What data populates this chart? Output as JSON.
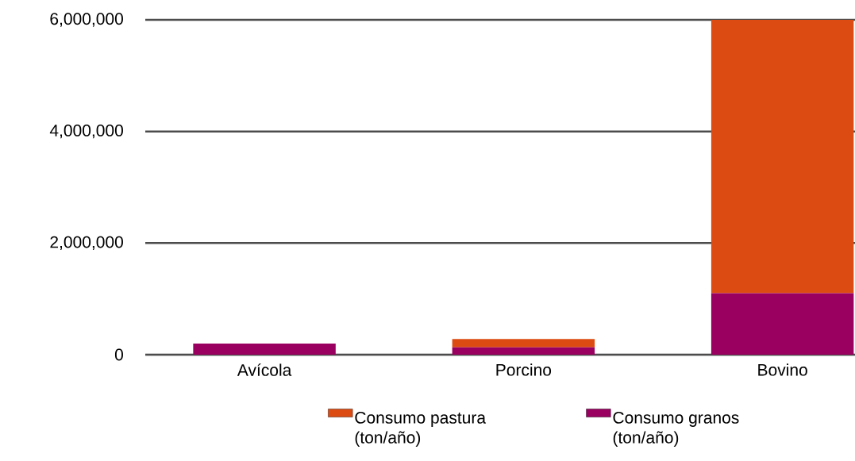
{
  "chart_data": {
    "type": "bar",
    "stacked": true,
    "categories": [
      "Avícola",
      "Porcino",
      "Bovino"
    ],
    "series": [
      {
        "name": "Consumo granos (ton/año)",
        "color": "#990060",
        "values": [
          200000,
          130000,
          1100000
        ]
      },
      {
        "name": "Consumo pastura (ton/año)",
        "color": "#dc4c12",
        "values": [
          0,
          150000,
          4900000
        ]
      }
    ],
    "ylim": [
      0,
      6000000
    ],
    "yticks": [
      0,
      {
        "value": 2000000,
        "label": "2,000,000"
      },
      {
        "value": 4000000,
        "label": "4,000,000"
      },
      {
        "value": 6000000,
        "label": "6,000,000"
      }
    ],
    "grid": "y",
    "legend": "bottom"
  }
}
